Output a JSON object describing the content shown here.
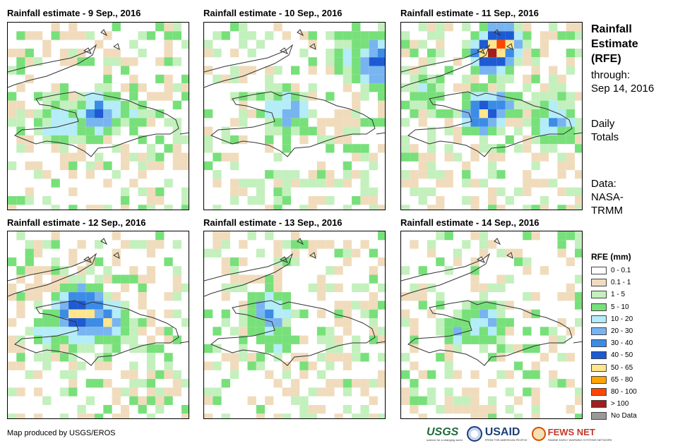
{
  "panels": [
    {
      "title": "Rainfall estimate - 9 Sep., 2016",
      "day": 9
    },
    {
      "title": "Rainfall estimate - 10 Sep., 2016",
      "day": 10
    },
    {
      "title": "Rainfall estimate - 11 Sep., 2016",
      "day": 11
    },
    {
      "title": "Rainfall estimate - 12 Sep., 2016",
      "day": 12
    },
    {
      "title": "Rainfall estimate - 13 Sep., 2016",
      "day": 13
    },
    {
      "title": "Rainfall estimate - 14 Sep., 2016",
      "day": 14
    }
  ],
  "side": {
    "title_line1": "Rainfall",
    "title_line2": "Estimate",
    "title_line3": "(RFE)",
    "through_label": "through:",
    "through_date": "Sep 14, 2016",
    "totals_line1": "Daily",
    "totals_line2": "Totals",
    "data_label": "Data:",
    "data_source1": "NASA-",
    "data_source2": "TRMM"
  },
  "legend": {
    "title": "RFE (mm)",
    "items": [
      {
        "label": "0 - 0.1",
        "color": "#ffffff"
      },
      {
        "label": "0.1 - 1",
        "color": "#f0dcbc"
      },
      {
        "label": "1 - 5",
        "color": "#c3f0bd"
      },
      {
        "label": "5 - 10",
        "color": "#78e07a"
      },
      {
        "label": "10 - 20",
        "color": "#b4ecf8"
      },
      {
        "label": "20 - 30",
        "color": "#78b4f0"
      },
      {
        "label": "30 - 40",
        "color": "#3c8ce6"
      },
      {
        "label": "40 - 50",
        "color": "#1e5ad2"
      },
      {
        "label": "50 - 65",
        "color": "#ffe68c"
      },
      {
        "label": "65 - 80",
        "color": "#ffa500"
      },
      {
        "label": "80 - 100",
        "color": "#ff4500"
      },
      {
        "label": "> 100",
        "color": "#a01e1e"
      },
      {
        "label": "No Data",
        "color": "#999999"
      }
    ]
  },
  "footer": {
    "credit": "Map produced by USGS/EROS",
    "logos": [
      {
        "name": "USGS",
        "tagline": "science for a changing world"
      },
      {
        "name": "USAID",
        "tagline": "FROM THE AMERICAN PEOPLE"
      },
      {
        "name": "FEWS NET",
        "tagline": "FAMINE EARLY WARNING SYSTEMS NETWORK"
      }
    ]
  }
}
